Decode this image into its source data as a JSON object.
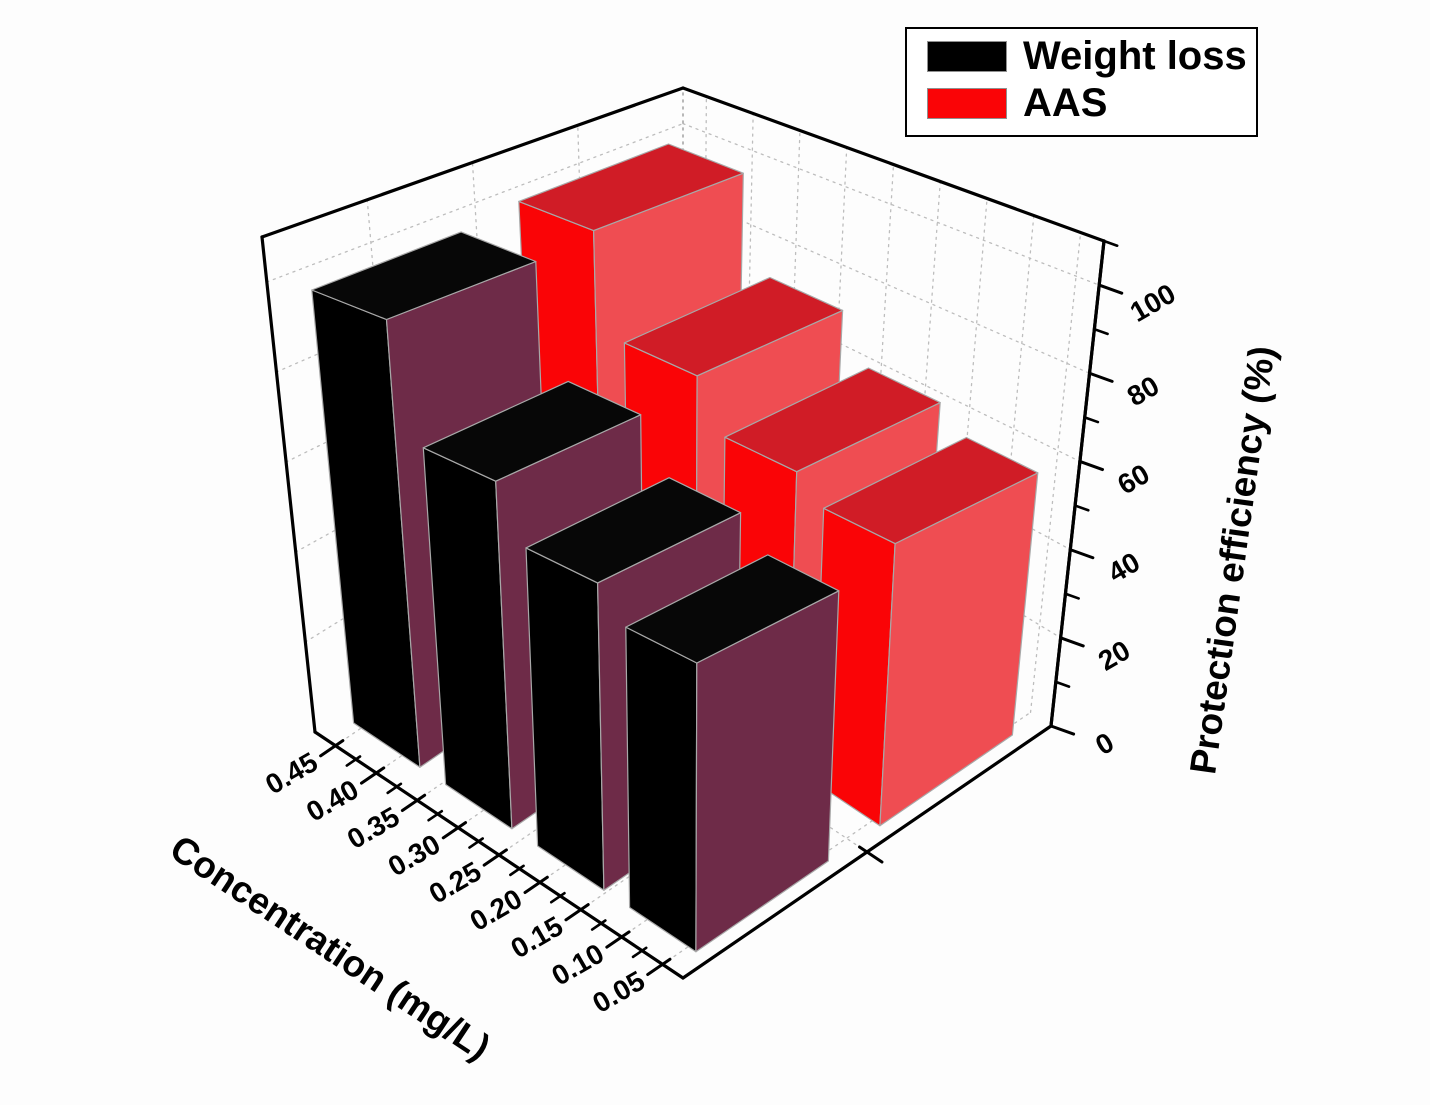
{
  "chart_data": {
    "type": "bar",
    "projection": "3d",
    "title": "",
    "xlabel": "Concentration (mg/L)",
    "ylabel": "Protection efficiency (%)",
    "x_tick_labels": [
      "0.45",
      "0.40",
      "0.35",
      "0.30",
      "0.25",
      "0.20",
      "0.15",
      "0.10",
      "0.05"
    ],
    "x_axis_range": [
      0.475,
      0.025
    ],
    "categories": [
      "0.40",
      "0.30",
      "0.20",
      "0.10"
    ],
    "series": [
      {
        "name": "Weight loss",
        "values": [
          97,
          72,
          61,
          55
        ],
        "face_color": "#000000",
        "top_color": "#070707",
        "side_color": "#6E2B48"
      },
      {
        "name": "AAS",
        "values": [
          99,
          75,
          64,
          59
        ],
        "face_color": "#FA0406",
        "top_color": "#D01C26",
        "side_color": "#EF4D52"
      }
    ],
    "z_ticks": [
      "0",
      "20",
      "40",
      "60",
      "80",
      "100"
    ],
    "z_minor_ticks": [
      10,
      30,
      50,
      70,
      90,
      110
    ],
    "z_range": [
      0,
      110
    ],
    "grid": true,
    "legend_position": "top-right",
    "frame_color": "#000000",
    "grid_color": "#bdbdbd",
    "edge_color": "#a8a8a8"
  }
}
